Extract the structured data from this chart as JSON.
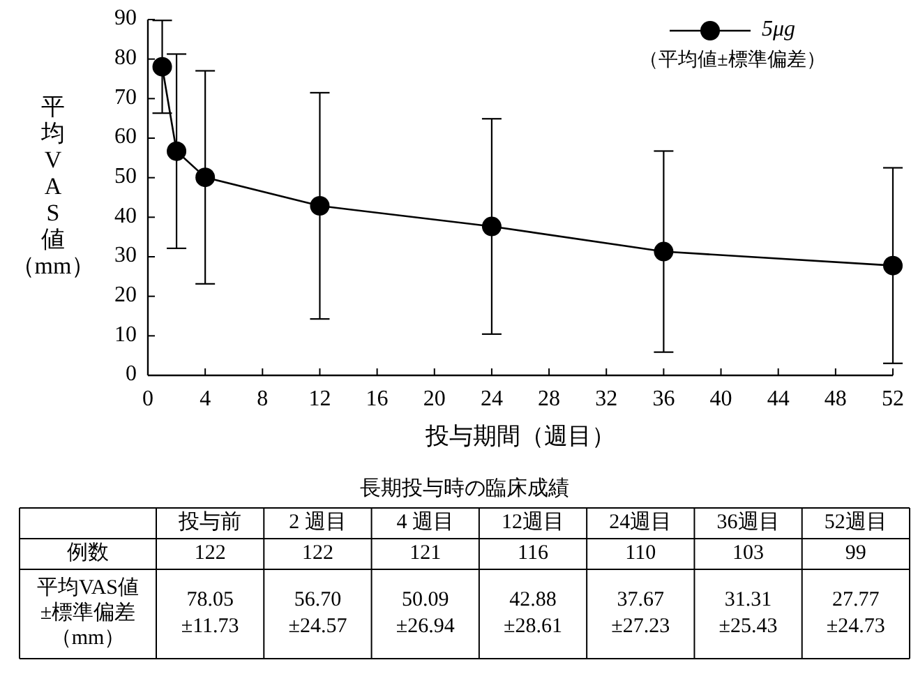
{
  "chart_data": [
    {
      "type": "line",
      "x": [
        1,
        2,
        4,
        12,
        24,
        36,
        52
      ],
      "series": [
        {
          "name": "5μg",
          "color": "#000000",
          "values": [
            78.05,
            56.7,
            50.09,
            42.88,
            37.67,
            31.31,
            27.77
          ],
          "errors": [
            11.73,
            24.57,
            26.94,
            28.61,
            27.23,
            25.43,
            24.73
          ]
        }
      ],
      "xlabel": "投与期間（週目）",
      "ylabel": "平均VAS値（mm）",
      "xlim": [
        0,
        52
      ],
      "ylim": [
        0,
        90
      ],
      "xticks": [
        0,
        4,
        8,
        12,
        16,
        20,
        24,
        28,
        32,
        36,
        40,
        44,
        48,
        52
      ],
      "yticks": [
        0,
        10,
        20,
        30,
        40,
        50,
        60,
        70,
        80,
        90
      ],
      "legend": "top right",
      "marker": "circle",
      "line_style": "solid",
      "annotations": [
        "（平均値±標準偏差）"
      ]
    },
    {
      "type": "other",
      "title": "長期投与時の臨床成績",
      "categories": [
        "投与前",
        "2 週目",
        "4 週目",
        "12週目",
        "24週目",
        "36週目",
        "52週目"
      ],
      "y_categories": [
        "例数",
        "平均VAS値±標準偏差（mm）"
      ],
      "cell_labels": [
        [
          "122",
          "122",
          "121",
          "116",
          "110",
          "103",
          "99"
        ],
        [
          "78.05\n±11.73",
          "56.70\n±24.57",
          "50.09\n±26.94",
          "42.88\n±28.61",
          "37.67\n±27.23",
          "31.31\n±25.43",
          "27.77\n±24.73"
        ]
      ]
    }
  ]
}
